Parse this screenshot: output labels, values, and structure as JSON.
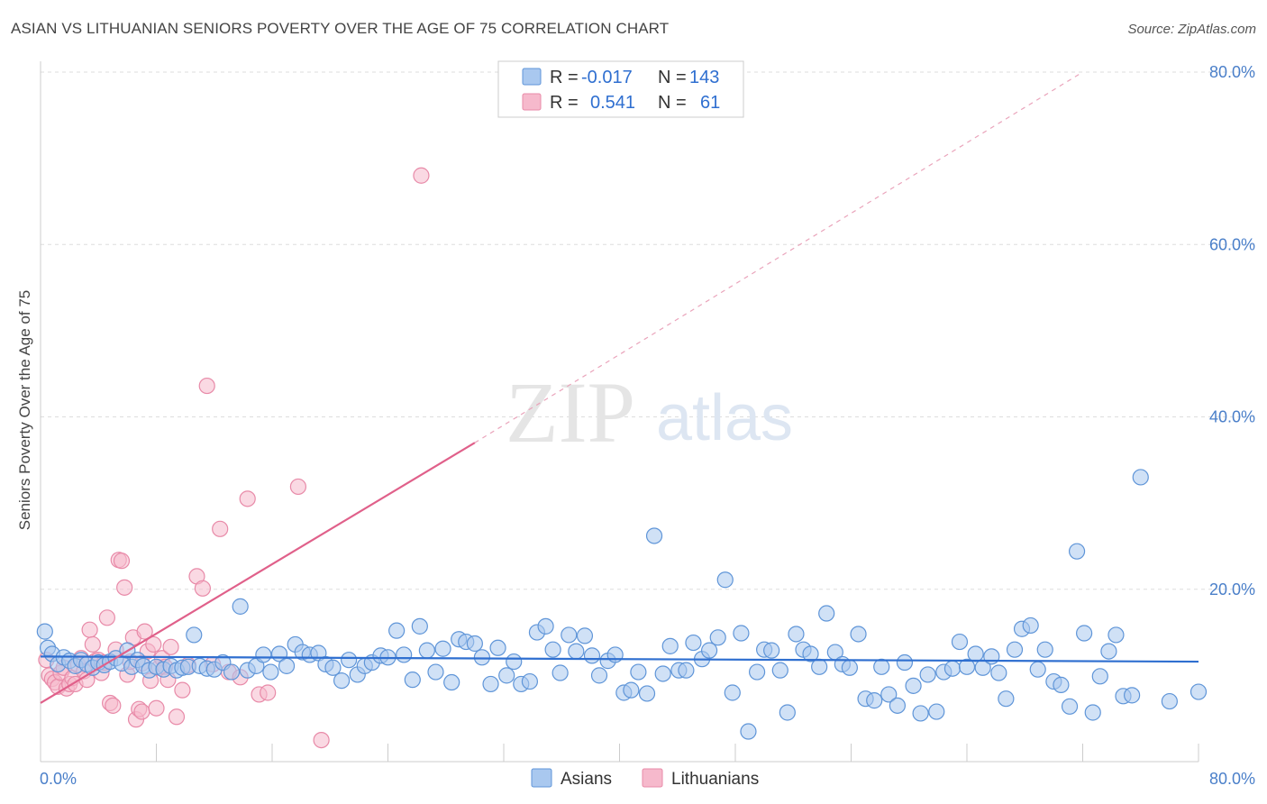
{
  "title": "ASIAN VS LITHUANIAN SENIORS POVERTY OVER THE AGE OF 75 CORRELATION CHART",
  "source": "Source: ZipAtlas.com",
  "watermark": {
    "zip": "ZIP",
    "atlas": "atlas"
  },
  "colors": {
    "asian_fill": "#a9c8ef",
    "asian_stroke": "#5f95d8",
    "asian_line": "#2f6fd0",
    "lith_fill": "#f6b9cc",
    "lith_stroke": "#e88aa8",
    "lith_line": "#e0608a",
    "tick_text": "#4a7fc9"
  },
  "legend": {
    "rows": [
      {
        "r_label": "R =",
        "r_value": "-0.017",
        "n_label": "N =",
        "n_value": "143"
      },
      {
        "r_label": "R =",
        "r_value": "0.541",
        "n_label": "N =",
        "n_value": "61"
      }
    ]
  },
  "bottom_legend": [
    "Asians",
    "Lithuanians"
  ],
  "chart_data": {
    "type": "scatter",
    "title": "ASIAN VS LITHUANIAN SENIORS POVERTY OVER THE AGE OF 75 CORRELATION CHART",
    "ylabel": "Seniors Poverty Over the Age of 75",
    "xlabel": "",
    "xlim": [
      0,
      80
    ],
    "ylim": [
      0,
      80
    ],
    "x_tick_labels": [
      "0.0%",
      "80.0%"
    ],
    "y_tick_labels": [
      "20.0%",
      "40.0%",
      "60.0%",
      "80.0%"
    ],
    "y_ticks": [
      20,
      40,
      60,
      80
    ],
    "grid": true,
    "series": [
      {
        "name": "Asians",
        "r": -0.017,
        "n": 143,
        "trend": {
          "x": [
            0,
            80
          ],
          "y": [
            12.2,
            11.6
          ]
        },
        "points": [
          [
            0.3,
            15.1
          ],
          [
            0.5,
            13.2
          ],
          [
            0.8,
            12.5
          ],
          [
            1.2,
            11.3
          ],
          [
            1.6,
            12.1
          ],
          [
            2.0,
            11.7
          ],
          [
            2.4,
            11.1
          ],
          [
            2.8,
            11.8
          ],
          [
            3.2,
            11.3
          ],
          [
            3.6,
            10.9
          ],
          [
            4.0,
            11.5
          ],
          [
            4.4,
            11.2
          ],
          [
            4.8,
            11.6
          ],
          [
            5.2,
            12.0
          ],
          [
            5.6,
            11.4
          ],
          [
            6.0,
            12.9
          ],
          [
            6.3,
            11.0
          ],
          [
            6.7,
            11.8
          ],
          [
            7.1,
            11.1
          ],
          [
            7.5,
            10.6
          ],
          [
            8.0,
            11.0
          ],
          [
            8.5,
            10.7
          ],
          [
            9.0,
            11.1
          ],
          [
            9.4,
            10.6
          ],
          [
            9.8,
            10.9
          ],
          [
            10.2,
            11.0
          ],
          [
            10.6,
            14.7
          ],
          [
            11.0,
            11.1
          ],
          [
            11.5,
            10.8
          ],
          [
            12.0,
            10.7
          ],
          [
            12.6,
            11.5
          ],
          [
            13.2,
            10.4
          ],
          [
            13.8,
            18.0
          ],
          [
            14.3,
            10.6
          ],
          [
            14.9,
            11.1
          ],
          [
            15.4,
            12.4
          ],
          [
            15.9,
            10.4
          ],
          [
            16.5,
            12.5
          ],
          [
            17.0,
            11.1
          ],
          [
            17.6,
            13.6
          ],
          [
            18.1,
            12.7
          ],
          [
            18.6,
            12.4
          ],
          [
            19.2,
            12.6
          ],
          [
            19.7,
            11.3
          ],
          [
            20.2,
            10.9
          ],
          [
            20.8,
            9.4
          ],
          [
            21.3,
            11.8
          ],
          [
            21.9,
            10.1
          ],
          [
            22.4,
            11.1
          ],
          [
            22.9,
            11.5
          ],
          [
            23.5,
            12.3
          ],
          [
            24.0,
            12.1
          ],
          [
            24.6,
            15.2
          ],
          [
            25.1,
            12.4
          ],
          [
            25.7,
            9.5
          ],
          [
            26.2,
            15.7
          ],
          [
            26.7,
            12.9
          ],
          [
            27.3,
            10.4
          ],
          [
            27.8,
            13.1
          ],
          [
            28.4,
            9.2
          ],
          [
            28.9,
            14.2
          ],
          [
            29.4,
            13.9
          ],
          [
            30.0,
            13.7
          ],
          [
            30.5,
            12.1
          ],
          [
            31.1,
            9.0
          ],
          [
            31.6,
            13.2
          ],
          [
            32.2,
            10.0
          ],
          [
            32.7,
            11.6
          ],
          [
            33.2,
            9.0
          ],
          [
            33.8,
            9.3
          ],
          [
            34.3,
            15.0
          ],
          [
            34.9,
            15.7
          ],
          [
            35.4,
            13.0
          ],
          [
            35.9,
            10.3
          ],
          [
            36.5,
            14.7
          ],
          [
            37.0,
            12.8
          ],
          [
            37.6,
            14.6
          ],
          [
            38.1,
            12.3
          ],
          [
            38.6,
            10.0
          ],
          [
            39.2,
            11.7
          ],
          [
            39.7,
            12.4
          ],
          [
            40.3,
            8.0
          ],
          [
            40.8,
            8.3
          ],
          [
            41.3,
            10.4
          ],
          [
            41.9,
            7.9
          ],
          [
            42.4,
            26.2
          ],
          [
            43.0,
            10.2
          ],
          [
            43.5,
            13.4
          ],
          [
            44.1,
            10.6
          ],
          [
            44.6,
            10.6
          ],
          [
            45.1,
            13.8
          ],
          [
            45.7,
            11.9
          ],
          [
            46.2,
            12.9
          ],
          [
            46.8,
            14.4
          ],
          [
            47.3,
            21.1
          ],
          [
            47.8,
            8.0
          ],
          [
            48.4,
            14.9
          ],
          [
            48.9,
            3.5
          ],
          [
            49.5,
            10.4
          ],
          [
            50.0,
            13.0
          ],
          [
            50.5,
            12.9
          ],
          [
            51.1,
            10.6
          ],
          [
            51.6,
            5.7
          ],
          [
            52.2,
            14.8
          ],
          [
            52.7,
            13.0
          ],
          [
            53.2,
            12.5
          ],
          [
            53.8,
            11.0
          ],
          [
            54.3,
            17.2
          ],
          [
            54.9,
            12.7
          ],
          [
            55.4,
            11.3
          ],
          [
            55.9,
            10.9
          ],
          [
            56.5,
            14.8
          ],
          [
            57.0,
            7.3
          ],
          [
            57.6,
            7.1
          ],
          [
            58.1,
            11.0
          ],
          [
            58.6,
            7.8
          ],
          [
            59.2,
            6.5
          ],
          [
            59.7,
            11.5
          ],
          [
            60.3,
            8.8
          ],
          [
            60.8,
            5.6
          ],
          [
            61.3,
            10.1
          ],
          [
            61.9,
            5.8
          ],
          [
            62.4,
            10.4
          ],
          [
            63.0,
            10.8
          ],
          [
            63.5,
            13.9
          ],
          [
            64.0,
            11.0
          ],
          [
            64.6,
            12.5
          ],
          [
            65.1,
            10.9
          ],
          [
            65.7,
            12.2
          ],
          [
            66.2,
            10.3
          ],
          [
            66.7,
            7.3
          ],
          [
            67.3,
            13.0
          ],
          [
            67.8,
            15.4
          ],
          [
            68.4,
            15.8
          ],
          [
            68.9,
            10.7
          ],
          [
            69.4,
            13.0
          ],
          [
            70.0,
            9.3
          ],
          [
            70.5,
            8.9
          ],
          [
            71.1,
            6.4
          ],
          [
            71.6,
            24.4
          ],
          [
            72.1,
            14.9
          ],
          [
            72.7,
            5.7
          ],
          [
            73.2,
            9.9
          ],
          [
            73.8,
            12.8
          ],
          [
            74.3,
            14.7
          ],
          [
            74.8,
            7.6
          ],
          [
            75.4,
            7.7
          ],
          [
            76.0,
            33.0
          ],
          [
            78.0,
            7.0
          ],
          [
            80.0,
            8.1
          ]
        ]
      },
      {
        "name": "Lithuanians",
        "r": 0.541,
        "n": 61,
        "trend": {
          "x": [
            0,
            30
          ],
          "y": [
            6.8,
            37.0
          ]
        },
        "trend_dashed": {
          "x": [
            30,
            72
          ],
          "y": [
            37.0,
            80.0
          ]
        },
        "points": [
          [
            0.4,
            11.8
          ],
          [
            0.6,
            10.0
          ],
          [
            0.8,
            9.6
          ],
          [
            1.0,
            9.2
          ],
          [
            1.2,
            8.7
          ],
          [
            1.4,
            10.3
          ],
          [
            1.6,
            10.9
          ],
          [
            1.8,
            8.5
          ],
          [
            2.0,
            9.0
          ],
          [
            2.2,
            9.7
          ],
          [
            2.4,
            9.0
          ],
          [
            2.6,
            11.2
          ],
          [
            2.8,
            12.0
          ],
          [
            3.0,
            10.5
          ],
          [
            3.2,
            9.5
          ],
          [
            3.4,
            15.3
          ],
          [
            3.6,
            13.6
          ],
          [
            3.8,
            11.7
          ],
          [
            4.0,
            11.8
          ],
          [
            4.2,
            10.3
          ],
          [
            4.4,
            11.5
          ],
          [
            4.6,
            16.7
          ],
          [
            4.8,
            6.8
          ],
          [
            5.0,
            6.5
          ],
          [
            5.2,
            13.0
          ],
          [
            5.4,
            23.4
          ],
          [
            5.6,
            23.3
          ],
          [
            5.8,
            20.2
          ],
          [
            6.0,
            10.1
          ],
          [
            6.2,
            11.6
          ],
          [
            6.4,
            14.4
          ],
          [
            6.6,
            4.9
          ],
          [
            6.8,
            6.1
          ],
          [
            7.0,
            5.8
          ],
          [
            7.2,
            15.1
          ],
          [
            7.4,
            12.8
          ],
          [
            7.6,
            9.4
          ],
          [
            7.8,
            13.6
          ],
          [
            8.0,
            6.2
          ],
          [
            8.2,
            10.9
          ],
          [
            8.4,
            12.0
          ],
          [
            8.6,
            11.0
          ],
          [
            8.8,
            9.5
          ],
          [
            9.0,
            13.3
          ],
          [
            9.4,
            5.2
          ],
          [
            9.8,
            8.3
          ],
          [
            10.2,
            11.2
          ],
          [
            10.8,
            21.5
          ],
          [
            11.2,
            20.1
          ],
          [
            11.5,
            43.6
          ],
          [
            11.9,
            11.3
          ],
          [
            12.4,
            27.0
          ],
          [
            13.0,
            10.4
          ],
          [
            14.3,
            30.5
          ],
          [
            15.1,
            7.8
          ],
          [
            15.7,
            8.0
          ],
          [
            17.8,
            31.9
          ],
          [
            19.4,
            2.5
          ],
          [
            26.3,
            68.0
          ],
          [
            13.8,
            9.8
          ],
          [
            7.0,
            11.4
          ]
        ]
      }
    ]
  }
}
